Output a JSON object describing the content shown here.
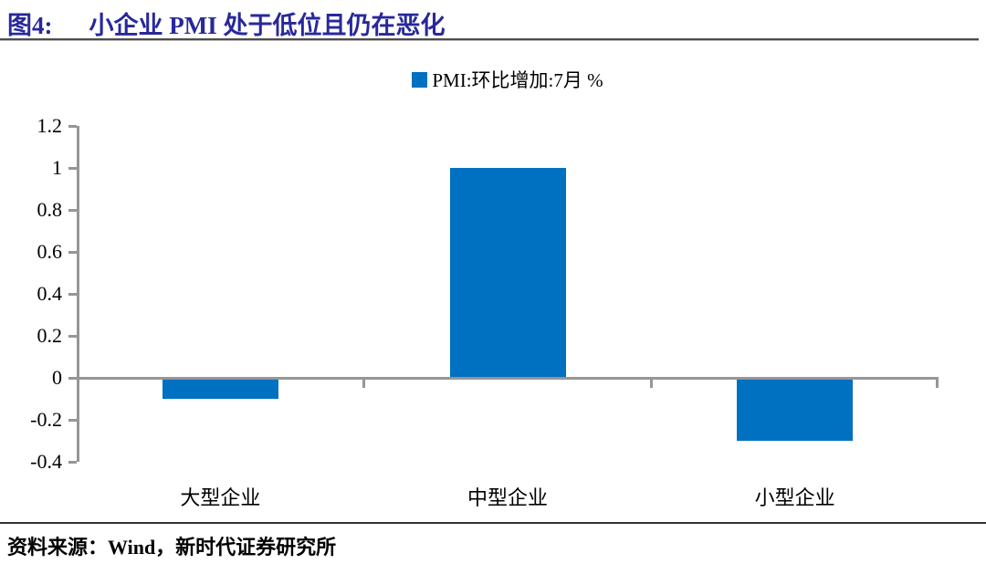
{
  "header": {
    "figure_label": "图4:",
    "title": "小企业 PMI 处于低位且仍在恶化"
  },
  "legend": {
    "label": "PMI:环比增加:7月 %"
  },
  "footer": {
    "source": "资料来源：Wind，新时代证券研究所"
  },
  "colors": {
    "bar": "#0070C0",
    "axis": "#969696",
    "title": "#28289B"
  },
  "chart_data": {
    "type": "bar",
    "title": "PMI:环比增加:7月 %",
    "categories": [
      "大型企业",
      "中型企业",
      "小型企业"
    ],
    "values": [
      -0.1,
      1.0,
      -0.3
    ],
    "ylim": [
      -0.4,
      1.2
    ],
    "yticks": [
      1.2,
      1,
      0.8,
      0.6,
      0.4,
      0.2,
      0,
      -0.2,
      -0.4
    ],
    "ytick_labels": [
      "1.2",
      "1",
      "0.8",
      "0.6",
      "0.4",
      "0.2",
      "0",
      "-0.2",
      "-0.4"
    ],
    "xlabel": "",
    "ylabel": "",
    "legend_position": "top",
    "grid": false
  }
}
